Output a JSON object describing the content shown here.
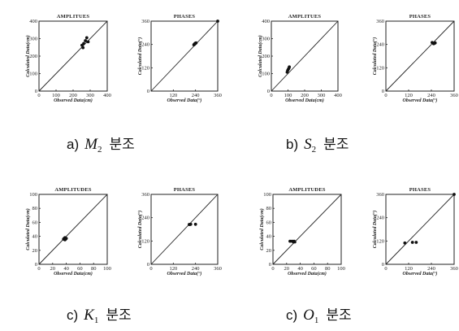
{
  "captions": [
    {
      "letter": "a)",
      "symbol": "M",
      "sub": "2",
      "word": "분조"
    },
    {
      "letter": "b)",
      "symbol": "S",
      "sub": "2",
      "word": "분조"
    },
    {
      "letter": "c)",
      "symbol": "K",
      "sub": "1",
      "word": "분조"
    },
    {
      "letter": "c)",
      "symbol": "O",
      "sub": "1",
      "word": "분조"
    }
  ],
  "chart_data": [
    {
      "type": "scatter",
      "title": "AMPLITUES",
      "xlabel": "Observed Data(cm)",
      "ylabel": "Calculated Data(cm)",
      "xlim": [
        0,
        400
      ],
      "ylim": [
        0,
        400
      ],
      "xticks": [
        0,
        100,
        200,
        300,
        400
      ],
      "yticks": [
        0,
        100,
        200,
        300,
        400
      ],
      "reference_line": "y = x",
      "points": [
        [
          252,
          262
        ],
        [
          258,
          248
        ],
        [
          262,
          272
        ],
        [
          272,
          288
        ],
        [
          280,
          305
        ],
        [
          288,
          282
        ]
      ]
    },
    {
      "type": "scatter",
      "title": "PHASES",
      "xlabel": "Observed Data(°)",
      "ylabel": "Calculated Data(°)",
      "xlim": [
        0,
        360
      ],
      "ylim": [
        0,
        360
      ],
      "xticks": [
        120,
        240,
        360
      ],
      "yticks": [
        0,
        120,
        240,
        360
      ],
      "reference_line": "y = x",
      "points": [
        [
          231,
          238
        ],
        [
          233,
          240
        ],
        [
          235,
          242
        ],
        [
          237,
          244
        ],
        [
          239,
          246
        ],
        [
          241,
          247
        ],
        [
          243,
          248
        ],
        [
          360,
          360
        ]
      ]
    },
    {
      "type": "scatter",
      "title": "AMPLITUES",
      "xlabel": "Observed Data(cm)",
      "ylabel": "Calculated Data(cm)",
      "xlim": [
        0,
        400
      ],
      "ylim": [
        0,
        400
      ],
      "xticks": [
        0,
        100,
        200,
        300,
        400
      ],
      "yticks": [
        0,
        100,
        200,
        300,
        400
      ],
      "reference_line": "y = x",
      "points": [
        [
          95,
          108
        ],
        [
          98,
          118
        ],
        [
          102,
          125
        ],
        [
          105,
          130
        ],
        [
          108,
          138
        ]
      ]
    },
    {
      "type": "scatter",
      "title": "PHASES",
      "xlabel": "Observed Data(°)",
      "ylabel": "Calculated Data(°)",
      "xlim": [
        0,
        360
      ],
      "ylim": [
        0,
        360
      ],
      "xticks": [
        0,
        120,
        240,
        360
      ],
      "yticks": [
        0,
        120,
        240,
        360
      ],
      "reference_line": "y = x",
      "points": [
        [
          244,
          250
        ],
        [
          252,
          244
        ],
        [
          256,
          246
        ],
        [
          260,
          248
        ]
      ]
    },
    {
      "type": "scatter",
      "title": "AMPLITUDES",
      "xlabel": "Observed Data(cm)",
      "ylabel": "Calculated Data(cm)",
      "xlim": [
        0,
        100
      ],
      "ylim": [
        0,
        100
      ],
      "xticks": [
        0,
        20,
        40,
        60,
        80,
        100
      ],
      "yticks": [
        0,
        20,
        40,
        60,
        80,
        100
      ],
      "reference_line": "y = x",
      "points": [
        [
          36,
          36
        ],
        [
          37,
          37
        ],
        [
          38,
          35
        ],
        [
          38,
          38
        ],
        [
          39,
          36
        ],
        [
          40,
          37
        ]
      ]
    },
    {
      "type": "scatter",
      "title": "PHASES",
      "xlabel": "Observed Data(°)",
      "ylabel": "Calculated Data(°)",
      "xlim": [
        0,
        360
      ],
      "ylim": [
        0,
        360
      ],
      "xticks": [
        0,
        120,
        240,
        360
      ],
      "yticks": [
        0,
        120,
        240,
        360
      ],
      "reference_line": "y = x",
      "points": [
        [
          206,
          205
        ],
        [
          210,
          205
        ],
        [
          214,
          206
        ],
        [
          240,
          206
        ]
      ]
    },
    {
      "type": "scatter",
      "title": "AMPLITUDES",
      "xlabel": "Observed Data(cm)",
      "ylabel": "Calculated Data(cm)",
      "xlim": [
        0,
        100
      ],
      "ylim": [
        0,
        100
      ],
      "xticks": [
        0,
        20,
        40,
        60,
        80,
        100
      ],
      "yticks": [
        0,
        20,
        40,
        60,
        80,
        100
      ],
      "reference_line": "y = x",
      "points": [
        [
          25,
          33
        ],
        [
          28,
          33
        ],
        [
          30,
          32
        ],
        [
          31,
          33
        ],
        [
          32,
          32
        ]
      ]
    },
    {
      "type": "scatter",
      "title": "PHASES",
      "xlabel": "Observed Data(°)",
      "ylabel": "Calculated Data(°)",
      "xlim": [
        0,
        360
      ],
      "ylim": [
        0,
        360
      ],
      "xticks": [
        0,
        120,
        240,
        360
      ],
      "yticks": [
        0,
        120,
        240,
        360
      ],
      "reference_line": "y = x",
      "points": [
        [
          100,
          110
        ],
        [
          140,
          113
        ],
        [
          160,
          113
        ],
        [
          360,
          360
        ]
      ]
    }
  ]
}
